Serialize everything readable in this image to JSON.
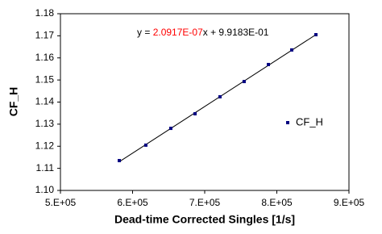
{
  "chart_data": {
    "type": "scatter",
    "x_label": "Dead-time Corrected Singles [1/s]",
    "y_label": "CF_H",
    "annotation": [
      {
        "text": "y = ",
        "color": "#000000"
      },
      {
        "text": "2.0917E-07",
        "color": "#ff0000"
      },
      {
        "text": "x + 9.9183E-01",
        "color": "#000000"
      }
    ],
    "series": [
      {
        "name": "CF_H",
        "color": "#000080",
        "x": [
          581600,
          618400,
          653000,
          686600,
          721200,
          754700,
          788300,
          820700,
          854200
        ],
        "values": [
          1.1135,
          1.1205,
          1.1281,
          1.1347,
          1.1424,
          1.1493,
          1.157,
          1.1636,
          1.1705
        ]
      }
    ],
    "trendline": true,
    "legend": "right",
    "grid": false,
    "xlim": [
      500000,
      900000
    ],
    "xticks": [
      {
        "value": 500000,
        "label": "5.E+05"
      },
      {
        "value": 600000,
        "label": "6.E+05"
      },
      {
        "value": 700000,
        "label": "7.E+05"
      },
      {
        "value": 800000,
        "label": "8.E+05"
      },
      {
        "value": 900000,
        "label": "9.E+05"
      }
    ],
    "ylim": [
      1.1,
      1.18
    ],
    "yticks": [
      {
        "value": 1.1,
        "label": "1.10"
      },
      1.11,
      1.12,
      1.13,
      1.14,
      1.15,
      1.16,
      1.17,
      1.18
    ]
  }
}
